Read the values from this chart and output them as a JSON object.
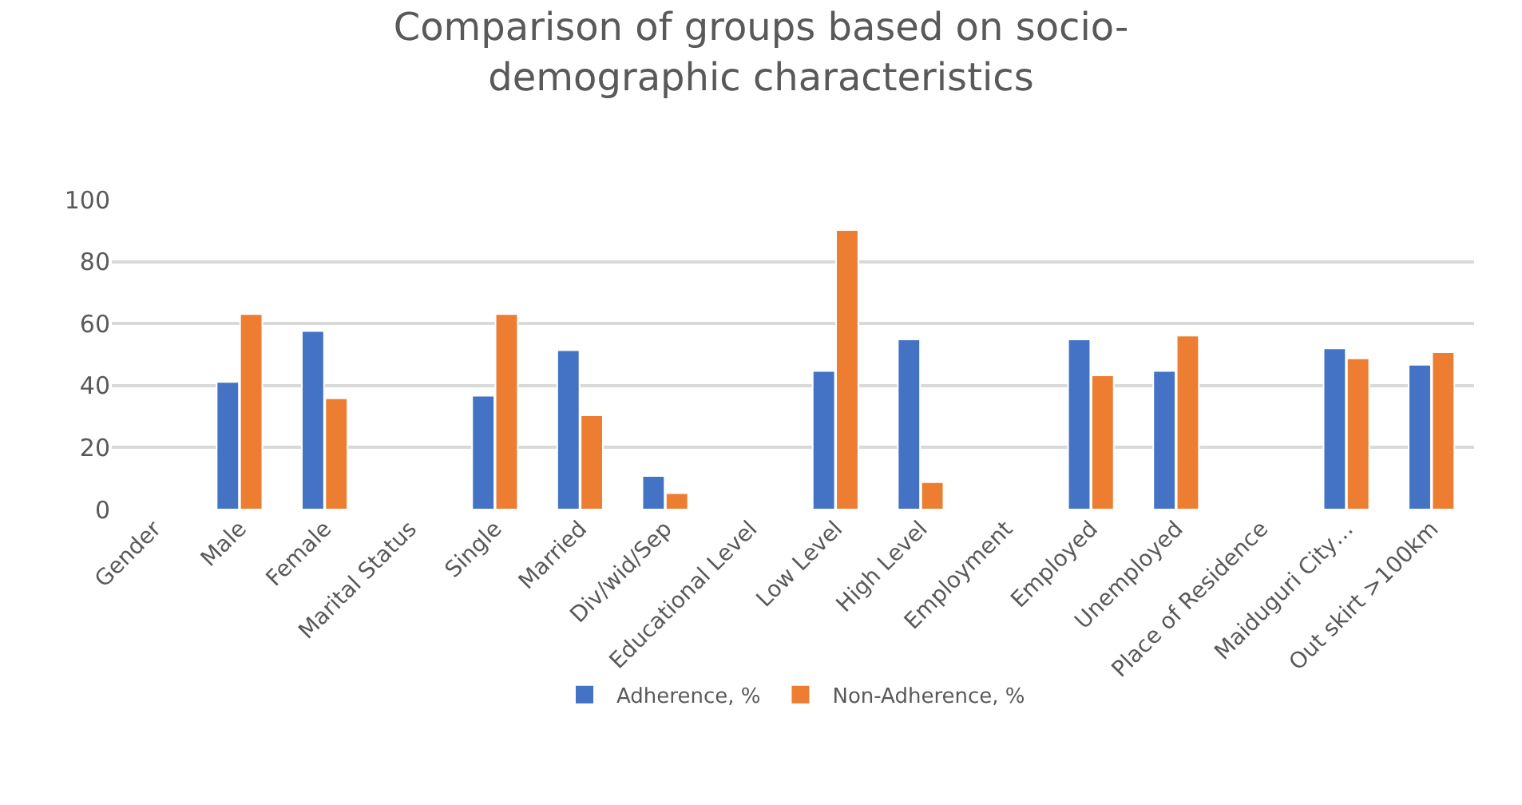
{
  "chart_data": {
    "type": "bar",
    "title": "Comparison of groups based on socio-demographic characteristics",
    "categories": [
      "Gender",
      "Male",
      "Female",
      "Marital Status",
      "Single",
      "Married",
      "Div/wid/Sep",
      "Educational Level",
      "Low Level",
      "High Level",
      "Employment",
      "Employed",
      "Unemployed",
      "Place of Residence",
      "Maiduguri City…",
      "Out skirt >100km"
    ],
    "series": [
      {
        "name": "Adherence, %",
        "color": "#4472c4",
        "values": [
          null,
          41.2,
          57.6,
          null,
          36.7,
          51.4,
          10.8,
          null,
          44.7,
          54.9,
          null,
          54.9,
          44.7,
          null,
          52.0,
          46.7
        ]
      },
      {
        "name": "Non-Adherence, %",
        "color": "#ed7d31",
        "values": [
          null,
          63.1,
          35.9,
          null,
          63.1,
          30.4,
          5.3,
          null,
          90.2,
          8.8,
          null,
          43.3,
          56.1,
          null,
          48.8,
          50.8
        ]
      }
    ],
    "ylim": [
      0,
      100
    ],
    "yticks": [
      0,
      20,
      40,
      60,
      80,
      100
    ],
    "grid": "y",
    "legend": "bottom"
  }
}
